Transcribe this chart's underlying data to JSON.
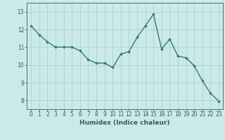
{
  "x": [
    0,
    1,
    2,
    3,
    4,
    5,
    6,
    7,
    8,
    9,
    10,
    11,
    12,
    13,
    14,
    15,
    16,
    17,
    18,
    19,
    20,
    21,
    22,
    23
  ],
  "y": [
    12.2,
    11.7,
    11.3,
    11.0,
    11.0,
    11.0,
    10.8,
    10.3,
    10.1,
    10.1,
    9.85,
    10.6,
    10.75,
    11.55,
    12.2,
    12.85,
    10.9,
    11.45,
    10.5,
    10.4,
    9.95,
    9.1,
    8.4,
    7.95
  ],
  "line_color": "#2e7d6e",
  "marker": "D",
  "marker_size": 1.8,
  "line_width": 1.0,
  "bg_color": "#cce9e9",
  "grid_color": "#aad0d0",
  "xlabel": "Humidex (Indice chaleur)",
  "xlim": [
    -0.5,
    23.5
  ],
  "ylim": [
    7.5,
    13.5
  ],
  "yticks": [
    8,
    9,
    10,
    11,
    12,
    13
  ],
  "xtick_labels": [
    "0",
    "1",
    "2",
    "3",
    "4",
    "5",
    "6",
    "7",
    "8",
    "9",
    "10",
    "11",
    "12",
    "13",
    "14",
    "15",
    "16",
    "17",
    "18",
    "19",
    "20",
    "21",
    "22",
    "23"
  ],
  "xlabel_color": "#2e5f5a",
  "tick_color": "#2e5f5a",
  "label_fontsize": 6.5,
  "tick_fontsize": 5.5
}
